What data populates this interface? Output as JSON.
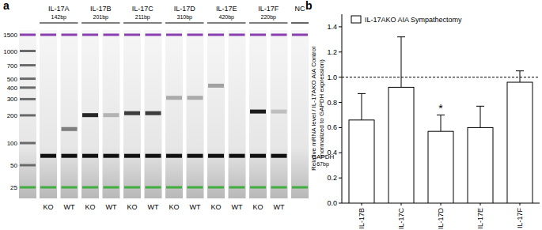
{
  "panel_a": {
    "label": "a",
    "ladder": [
      1500,
      1000,
      700,
      500,
      400,
      300,
      200,
      100,
      50,
      25
    ],
    "lanes": [
      "KO",
      "WT"
    ],
    "genes": [
      {
        "name": "IL-17A",
        "size": {
          "value": 142,
          "label": "142bp"
        },
        "signal": [
          0,
          0.5
        ]
      },
      {
        "name": "IL-17B",
        "size": {
          "value": 201,
          "label": "201bp"
        },
        "signal": [
          0.9,
          0.25
        ]
      },
      {
        "name": "IL-17C",
        "size": {
          "value": 211,
          "label": "211bp"
        },
        "signal": [
          0.8,
          0.8
        ]
      },
      {
        "name": "IL-17D",
        "size": {
          "value": 310,
          "label": "310bp"
        },
        "signal": [
          0.3,
          0.3
        ]
      },
      {
        "name": "IL-17E",
        "size": {
          "value": 420,
          "label": "420bp"
        },
        "signal": [
          0.35,
          0
        ]
      },
      {
        "name": "IL-17F",
        "size": {
          "value": 220,
          "label": "220bp"
        },
        "signal": [
          0.95,
          0.2
        ]
      }
    ],
    "negative_control": "NC",
    "loading_control": {
      "name": "GAPDH",
      "size": {
        "value": 67,
        "label": "67bp"
      }
    }
  },
  "chart_data": {
    "type": "bar",
    "panel_label": "b",
    "categories": [
      "IL-17B",
      "IL-17C",
      "IL-17D",
      "IL-17E",
      "IL-17F"
    ],
    "series": [
      {
        "name": "IL-17AKO AIA Sympathectomy",
        "color": "#ffffff",
        "values": [
          0.66,
          0.92,
          0.57,
          0.6,
          0.96
        ],
        "errors": [
          0.21,
          0.4,
          0.13,
          0.17,
          0.09
        ]
      }
    ],
    "ylabel": [
      "Relative mRNA level / IL-17AKO AIA Control",
      "(normalized to GAPDH expression)"
    ],
    "ylim": [
      0,
      1.5
    ],
    "yticks": [
      {
        "value": 0,
        "label": "0.0"
      },
      {
        "value": 0.2,
        "label": "0.2"
      },
      {
        "value": 0.4,
        "label": "0.4"
      },
      {
        "value": 0.6,
        "label": "0.6"
      },
      {
        "value": 0.8,
        "label": "0.8"
      },
      {
        "value": 1,
        "label": "1.0"
      },
      {
        "value": 1.2,
        "label": "1.2"
      },
      {
        "value": 1.4,
        "label": "1.4"
      }
    ],
    "reference_lines": [
      {
        "value": 1,
        "line_style": "dashed"
      }
    ],
    "annotations": [
      {
        "text": "*",
        "category": "IL-17D"
      }
    ],
    "legend": "upper left",
    "grid": false
  }
}
